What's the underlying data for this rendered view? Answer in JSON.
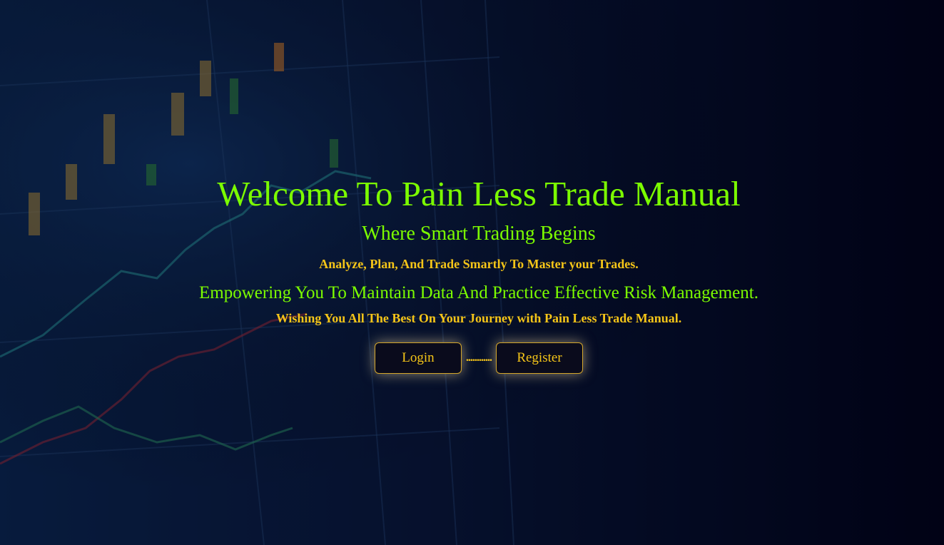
{
  "hero": {
    "title": "Welcome To Pain Less Trade Manual",
    "subtitle": "Where Smart Trading Begins",
    "tagline": "Analyze, Plan, And Trade Smartly To Master your Trades.",
    "description": "Empowering You To Maintain Data And Practice Effective Risk Management.",
    "wish": "Wishing You All The Best On Your Journey with Pain Less Trade Manual.",
    "buttons": {
      "login": "Login",
      "separator": "............",
      "register": "Register"
    }
  }
}
